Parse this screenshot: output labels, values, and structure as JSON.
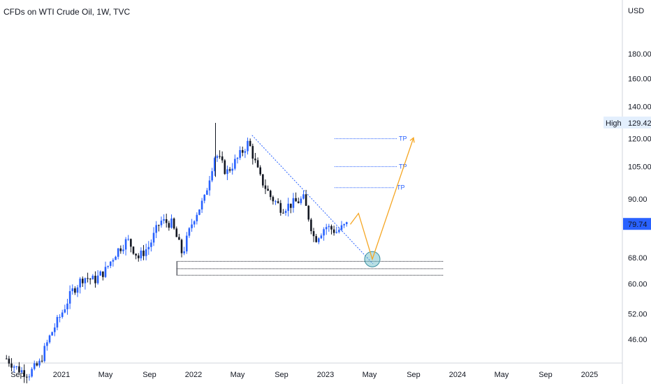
{
  "chart_title": "CFDs on WTI Crude Oil, 1W, TVC",
  "currency": "USD",
  "high_label": "High",
  "high_value": "129.42",
  "last_price": "79.74",
  "colors": {
    "up": "#2962ff",
    "down": "#131722",
    "projection": "#f5a623",
    "trendline": "#2962ff",
    "target_zone": "#5fb8c4",
    "last_price_bg": "#2962ff",
    "high_bg": "#e3effd"
  },
  "chart_data": {
    "type": "candlestick",
    "title": "CFDs on WTI Crude Oil, 1W, TVC",
    "y_scale": "log",
    "ylim": [
      40,
      200
    ],
    "y_ticks": [
      "46.00",
      "52.00",
      "60.00",
      "68.00",
      "79.74",
      "90.00",
      "105.00",
      "120.00",
      "129.42",
      "140.00",
      "160.00",
      "180.00"
    ],
    "x_ticks": [
      "Sep",
      "2021",
      "May",
      "Sep",
      "2022",
      "May",
      "Sep",
      "2023",
      "May",
      "Sep",
      "2024",
      "May",
      "Sep",
      "2025"
    ],
    "x_tick_dates": [
      "2020-09",
      "2021-01",
      "2021-05",
      "2021-09",
      "2022-01",
      "2022-05",
      "2022-09",
      "2023-01",
      "2023-05",
      "2023-09",
      "2024-01",
      "2024-05",
      "2024-09",
      "2025-01"
    ],
    "price_path": [
      [
        "2020-08",
        42
      ],
      [
        "2020-09",
        40
      ],
      [
        "2020-10",
        39
      ],
      [
        "2020-11",
        41
      ],
      [
        "2020-12",
        47
      ],
      [
        "2021-01",
        52
      ],
      [
        "2021-02",
        58
      ],
      [
        "2021-03",
        62
      ],
      [
        "2021-04",
        61
      ],
      [
        "2021-05",
        64
      ],
      [
        "2021-06",
        70
      ],
      [
        "2021-07",
        74
      ],
      [
        "2021-08",
        68
      ],
      [
        "2021-09",
        72
      ],
      [
        "2021-10",
        81
      ],
      [
        "2021-11",
        80
      ],
      [
        "2021-12",
        69
      ],
      [
        "2022-01",
        82
      ],
      [
        "2022-02",
        90
      ],
      [
        "2022-03",
        112
      ],
      [
        "2022-04",
        102
      ],
      [
        "2022-05",
        109
      ],
      [
        "2022-06",
        118
      ],
      [
        "2022-07",
        100
      ],
      [
        "2022-08",
        91
      ],
      [
        "2022-09",
        86
      ],
      [
        "2022-10",
        88
      ],
      [
        "2022-11",
        90
      ],
      [
        "2022-12",
        74
      ],
      [
        "2023-01",
        79
      ],
      [
        "2023-02",
        77
      ],
      [
        "2023-03",
        79.74
      ]
    ],
    "all_time_high": 129.42,
    "annotations": {
      "tp_label": "TP",
      "take_profit_levels": [
        120,
        105,
        95
      ],
      "support_levels": [
        66.8,
        64.5,
        62.5
      ],
      "projection_path": [
        [
          "2023-03",
          79.7
        ],
        [
          "2023-04",
          84.0
        ],
        [
          "2023-05",
          67.5
        ],
        [
          "2023-09",
          120.5
        ]
      ],
      "target_zone_center": [
        "2023-05",
        67.5
      ]
    }
  }
}
